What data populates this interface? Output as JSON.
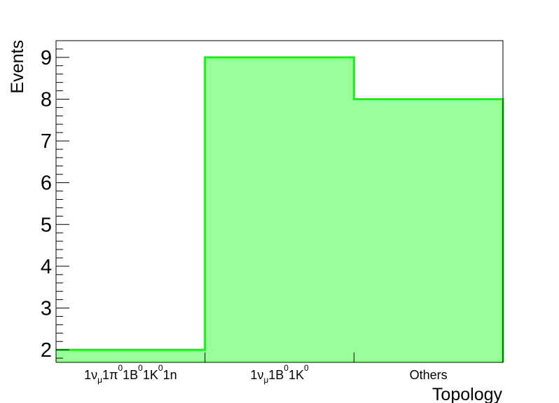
{
  "chart_data": {
    "type": "bar",
    "style": "step-histogram",
    "categories": [
      {
        "main": "1ν",
        "parts": [
          [
            "1ν",
            ""
          ],
          [
            "μ",
            "sub"
          ],
          [
            "1π",
            ""
          ],
          [
            "0",
            "sup"
          ],
          [
            "1B",
            ""
          ],
          [
            "0",
            "sup"
          ],
          [
            "1K",
            ""
          ],
          [
            "0",
            "sup"
          ],
          [
            "1n",
            ""
          ]
        ],
        "text": "1ν_μ1π^01B^01K^01n"
      },
      {
        "main": "1ν",
        "parts": [
          [
            "1ν",
            ""
          ],
          [
            "μ",
            "sub"
          ],
          [
            "1B",
            ""
          ],
          [
            "0",
            "sup"
          ],
          [
            "1K",
            ""
          ],
          [
            "0",
            "sup"
          ]
        ],
        "text": "1ν_μ1B^01K^0"
      },
      {
        "main": "Others",
        "parts": [
          [
            "Others",
            ""
          ]
        ],
        "text": "Others"
      }
    ],
    "values": [
      2,
      9,
      8
    ],
    "xlabel": "Topology",
    "ylabel": "Events",
    "ylim": [
      1.7,
      9.4
    ],
    "yticks": [
      "2",
      "3",
      "4",
      "5",
      "6",
      "7",
      "8",
      "9"
    ],
    "grid": false,
    "colors": {
      "fill": "#99ff99",
      "line": "#1aef1a"
    }
  }
}
